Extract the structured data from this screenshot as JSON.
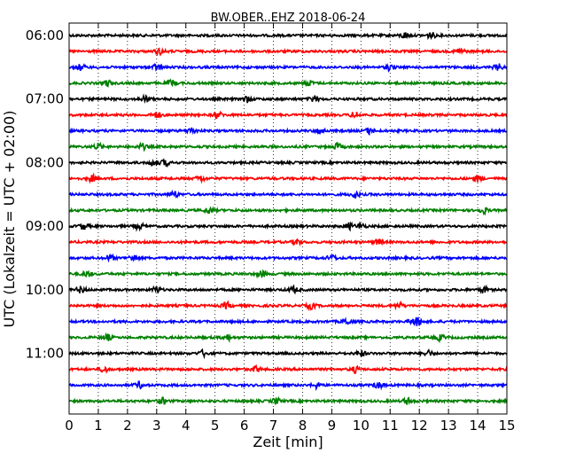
{
  "chart_data": {
    "type": "line",
    "title": "BW.OBER..EHZ 2018-06-24",
    "xlabel": "Zeit  [min]",
    "ylabel": "UTC (Lokalzeit = UTC + 02:00)",
    "xlim": [
      0,
      15
    ],
    "x_ticks": [
      0,
      1,
      2,
      3,
      4,
      5,
      6,
      7,
      8,
      9,
      10,
      11,
      12,
      13,
      14,
      15
    ],
    "x_tick_labels": [
      "0",
      "1",
      "2",
      "3",
      "4",
      "5",
      "6",
      "7",
      "8",
      "9",
      "10",
      "11",
      "12",
      "13",
      "14",
      "15"
    ],
    "y_tick_labels": [
      "06:00",
      "07:00",
      "08:00",
      "09:00",
      "10:00",
      "11:00"
    ],
    "y_tick_trace_index": [
      0,
      4,
      8,
      12,
      16,
      20
    ],
    "grid": "vertical dotted at each minute",
    "trace_duration_min": 15,
    "trace_colors": [
      "#000000",
      "#ff0000",
      "#0000ff",
      "#008000"
    ],
    "series": [
      {
        "start": "06:00",
        "events_min": [
          11.5,
          12.4
        ]
      },
      {
        "start": "06:15",
        "events_min": [
          3.1,
          13.4
        ]
      },
      {
        "start": "06:30",
        "events_min": [
          0.4,
          3.0,
          11.0,
          14.7
        ]
      },
      {
        "start": "06:45",
        "events_min": [
          1.3,
          3.5,
          8.2
        ]
      },
      {
        "start": "07:00",
        "events_min": [
          2.6,
          6.1,
          8.4
        ]
      },
      {
        "start": "07:15",
        "events_min": [
          3.0,
          5.1,
          9.8
        ]
      },
      {
        "start": "07:30",
        "events_min": [
          4.2,
          8.6,
          10.3
        ]
      },
      {
        "start": "07:45",
        "events_min": [
          1.0,
          2.5,
          9.2
        ]
      },
      {
        "start": "08:00",
        "events_min": [
          2.9,
          3.3
        ]
      },
      {
        "start": "08:15",
        "events_min": [
          0.8,
          4.5,
          14.0
        ]
      },
      {
        "start": "08:30",
        "events_min": [
          9.8,
          3.6
        ]
      },
      {
        "start": "08:45",
        "events_min": [
          4.8,
          14.2
        ]
      },
      {
        "start": "09:00",
        "events_min": [
          0.5,
          2.4,
          9.6,
          10.0
        ]
      },
      {
        "start": "09:15",
        "events_min": [
          7.8,
          10.6
        ]
      },
      {
        "start": "09:30",
        "events_min": [
          1.4,
          2.2,
          9.0
        ]
      },
      {
        "start": "09:45",
        "events_min": [
          0.6,
          6.6
        ]
      },
      {
        "start": "10:00",
        "events_min": [
          0.4,
          3.0,
          7.7,
          14.2
        ]
      },
      {
        "start": "10:15",
        "events_min": [
          5.4,
          8.3,
          11.3
        ]
      },
      {
        "start": "10:30",
        "events_min": [
          9.5,
          11.8,
          12.0
        ]
      },
      {
        "start": "10:45",
        "events_min": [
          1.3,
          5.4,
          12.7
        ]
      },
      {
        "start": "11:00",
        "events_min": [
          4.6,
          10.0,
          12.3
        ]
      },
      {
        "start": "11:15",
        "events_min": [
          1.2,
          6.4,
          9.8
        ]
      },
      {
        "start": "11:30",
        "events_min": [
          2.4,
          8.5,
          10.6
        ]
      },
      {
        "start": "11:45",
        "events_min": [
          3.2,
          7.1,
          11.6
        ]
      }
    ]
  }
}
